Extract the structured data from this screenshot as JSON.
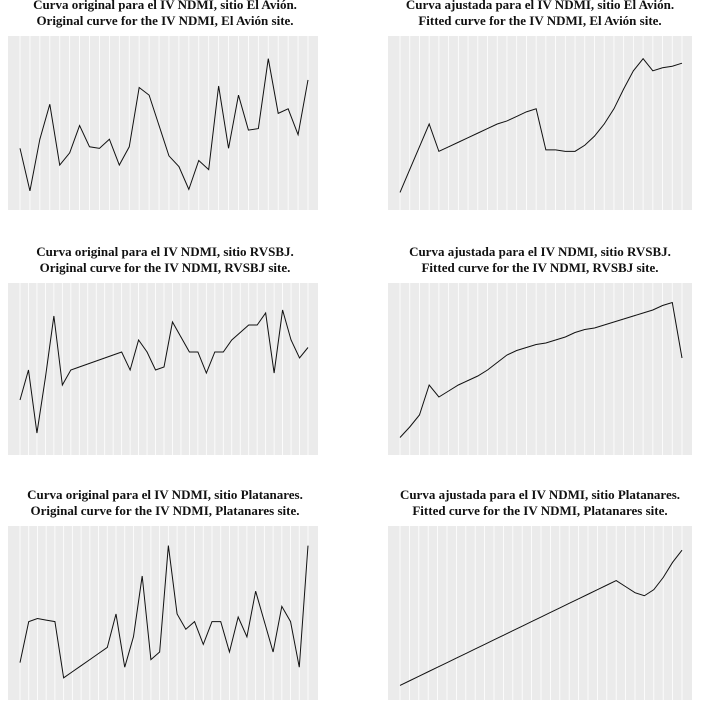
{
  "chart_data": [
    {
      "type": "line",
      "title": "Curva original para el IV NDMI, sitio El Avión.",
      "subtitle": "Original curve for the IV NDMI, El Avión site.",
      "color": "#111111",
      "ylim": [
        0,
        100
      ],
      "grid": true,
      "categories": [
        null,
        null,
        null,
        null,
        null,
        null,
        null,
        null,
        null,
        null,
        null,
        null,
        null,
        null,
        null,
        null,
        null,
        null,
        null,
        null,
        null,
        null,
        null,
        null,
        null,
        null,
        null,
        null,
        null,
        null
      ],
      "values": [
        34,
        6,
        40,
        63,
        23,
        31,
        49,
        35,
        34,
        40,
        23,
        35,
        74,
        69,
        49,
        29,
        22,
        7,
        26,
        20,
        75,
        34,
        69,
        46,
        47,
        93,
        57,
        60,
        43,
        79
      ]
    },
    {
      "type": "line",
      "title": "Curva ajustada para el IV NDMI, sitio El Avión.",
      "subtitle": "Fitted curve for the IV NDMI, El Avión site.",
      "color": "#111111",
      "ylim": [
        0,
        100
      ],
      "grid": true,
      "categories": [
        null,
        null,
        null,
        null,
        null,
        null,
        null,
        null,
        null,
        null,
        null,
        null,
        null,
        null,
        null,
        null,
        null,
        null,
        null,
        null,
        null,
        null,
        null,
        null,
        null,
        null,
        null,
        null,
        null,
        null
      ],
      "values": [
        5,
        20,
        35,
        50,
        32,
        35,
        38,
        41,
        44,
        47,
        50,
        52,
        55,
        58,
        60,
        33,
        33,
        32,
        32,
        36,
        42,
        50,
        60,
        73,
        85,
        93,
        85,
        87,
        88,
        90
      ]
    },
    {
      "type": "line",
      "title": "Curva original para el IV NDMI, sitio RVSBJ.",
      "subtitle": "Original curve for the IV NDMI, RVSBJ site.",
      "color": "#111111",
      "ylim": [
        0,
        100
      ],
      "grid": true,
      "categories": [
        null,
        null,
        null,
        null,
        null,
        null,
        null,
        null,
        null,
        null,
        null,
        null,
        null,
        null,
        null,
        null,
        null,
        null,
        null,
        null,
        null,
        null,
        null,
        null,
        null,
        null,
        null,
        null,
        null,
        null,
        null,
        null,
        null,
        null,
        null
      ],
      "values": [
        30,
        50,
        8,
        45,
        86,
        40,
        50,
        52,
        54,
        56,
        58,
        60,
        62,
        50,
        70,
        62,
        50,
        52,
        82,
        72,
        62,
        62,
        48,
        62,
        62,
        70,
        75,
        80,
        80,
        88,
        48,
        90,
        70,
        58,
        65
      ]
    },
    {
      "type": "line",
      "title": "Curva ajustada para el IV NDMI, sitio RVSBJ.",
      "subtitle": "Fitted curve for the IV NDMI, RVSBJ site.",
      "color": "#111111",
      "ylim": [
        0,
        100
      ],
      "grid": true,
      "categories": [
        null,
        null,
        null,
        null,
        null,
        null,
        null,
        null,
        null,
        null,
        null,
        null,
        null,
        null,
        null,
        null,
        null,
        null,
        null,
        null,
        null,
        null,
        null,
        null,
        null,
        null,
        null,
        null,
        null,
        null
      ],
      "values": [
        5,
        12,
        20,
        40,
        32,
        36,
        40,
        43,
        46,
        50,
        55,
        60,
        63,
        65,
        67,
        68,
        70,
        72,
        75,
        77,
        78,
        80,
        82,
        84,
        86,
        88,
        90,
        93,
        95,
        58
      ]
    },
    {
      "type": "line",
      "title": "Curva original para el IV NDMI, sitio Platanares.",
      "subtitle": "Original curve for the IV NDMI, Platanares site.",
      "color": "#111111",
      "ylim": [
        0,
        100
      ],
      "grid": true,
      "categories": [
        null,
        null,
        null,
        null,
        null,
        null,
        null,
        null,
        null,
        null,
        null,
        null,
        null,
        null,
        null,
        null,
        null,
        null,
        null,
        null,
        null,
        null,
        null,
        null,
        null,
        null,
        null,
        null,
        null,
        null,
        null,
        null,
        null,
        null
      ],
      "values": [
        18,
        45,
        47,
        46,
        45,
        8,
        12,
        16,
        20,
        24,
        28,
        50,
        15,
        35,
        75,
        20,
        25,
        95,
        50,
        40,
        45,
        30,
        45,
        45,
        25,
        48,
        35,
        65,
        45,
        25,
        55,
        45,
        15,
        95
      ]
    },
    {
      "type": "line",
      "title": "Curva ajustada para el IV NDMI, sitio Platanares.",
      "subtitle": "Fitted curve for the IV NDMI, Platanares site.",
      "color": "#111111",
      "ylim": [
        0,
        100
      ],
      "grid": true,
      "categories": [
        null,
        null,
        null,
        null,
        null,
        null,
        null,
        null,
        null,
        null,
        null,
        null,
        null,
        null,
        null,
        null,
        null,
        null,
        null,
        null,
        null,
        null,
        null,
        null,
        null,
        null,
        null,
        null,
        null,
        null,
        null
      ],
      "values": [
        3,
        6,
        9,
        12,
        15,
        18,
        21,
        24,
        27,
        30,
        33,
        36,
        39,
        42,
        45,
        48,
        51,
        54,
        57,
        60,
        63,
        66,
        69,
        72,
        68,
        64,
        62,
        66,
        74,
        84,
        92
      ]
    }
  ]
}
